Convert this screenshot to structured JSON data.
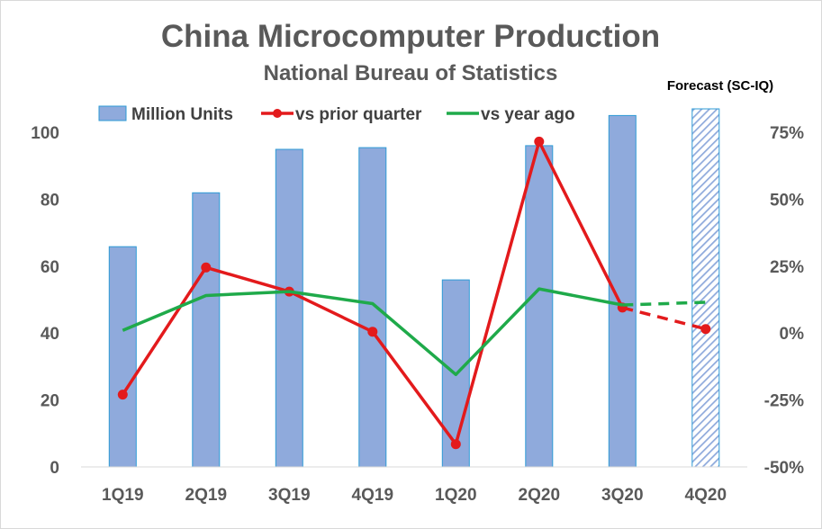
{
  "chart_data": {
    "type": "bar",
    "title": "China Microcomputer Production",
    "subtitle": "National Bureau of Statistics",
    "annotation": "Forecast (SC-IQ)",
    "categories": [
      "1Q19",
      "2Q19",
      "3Q19",
      "4Q19",
      "1Q20",
      "2Q20",
      "3Q20",
      "4Q20"
    ],
    "forecast_categories": [
      "4Q20"
    ],
    "y_left": {
      "ylim": [
        0,
        100
      ],
      "ticks": [
        "0",
        "20",
        "40",
        "60",
        "80",
        "100"
      ]
    },
    "y_right": {
      "ylim": [
        -0.5,
        0.75
      ],
      "ticks": [
        "-50%",
        "-25%",
        "0%",
        "25%",
        "50%",
        "75%"
      ]
    },
    "grid": false,
    "legend": "top",
    "series": [
      {
        "name": "Million Units",
        "type": "bar",
        "axis": "left",
        "color": "#8FAADC",
        "values": [
          65.8,
          81.9,
          94.9,
          95.4,
          55.9,
          96.0,
          105.0,
          107.0
        ]
      },
      {
        "name": "vs prior quarter",
        "type": "line",
        "axis": "right",
        "color": "#E31A1C",
        "values": [
          -0.23,
          0.245,
          0.155,
          0.005,
          -0.415,
          0.715,
          0.095,
          0.015
        ],
        "forecast_from_index": 6
      },
      {
        "name": "vs year ago",
        "type": "line",
        "axis": "right",
        "color": "#1FAA4A",
        "values": [
          0.01,
          0.14,
          0.155,
          0.11,
          -0.155,
          0.165,
          0.105,
          0.115
        ],
        "forecast_from_index": 6
      }
    ]
  }
}
